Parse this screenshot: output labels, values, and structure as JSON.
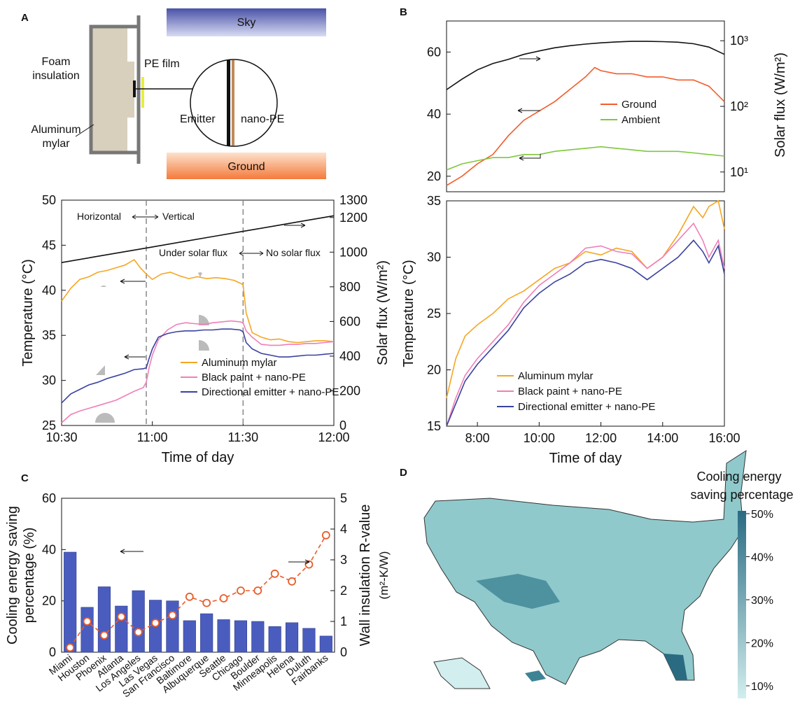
{
  "panels": {
    "A": "A",
    "B": "B",
    "C": "C",
    "D": "D"
  },
  "schematic": {
    "sky": "Sky",
    "ground": "Ground",
    "foam": "Foam insulation",
    "mylar": "Aluminum mylar",
    "pe_film": "PE film",
    "emitter": "Emitter",
    "nano_pe": "nano-PE",
    "colors": {
      "sky_top": "#4a52a8",
      "sky_bottom": "#d8dcf2",
      "ground_top": "#fde2cc",
      "ground_bottom": "#f47a3c",
      "foam": "#d8cfbd",
      "pe_film": "#e8ef3a"
    }
  },
  "chart_a2": {
    "annotations": {
      "horizontal": "Horizontal",
      "vertical": "Vertical",
      "under_solar": "Under solar flux",
      "no_solar": "No solar flux"
    }
  },
  "map": {
    "legend_title": "Cooling energy saving percentage",
    "legend_ticks": [
      "50%",
      "40%",
      "30%",
      "20%",
      "10%"
    ],
    "colors": {
      "low": "#d2eeee",
      "high": "#2a6b82"
    }
  },
  "chart_data": [
    {
      "id": "A2",
      "type": "line",
      "xlabel": "Time of day",
      "ylabel": "Temperature (°C)",
      "y2label": "Solar flux (W/m²)",
      "xlim": [
        0,
        90
      ],
      "ylim": [
        25,
        50
      ],
      "y2lim": [
        0,
        1300
      ],
      "xticks": [
        {
          "v": 0,
          "t": "10:30"
        },
        {
          "v": 30,
          "t": "11:00"
        },
        {
          "v": 60,
          "t": "11:30"
        },
        {
          "v": 90,
          "t": "12:00"
        }
      ],
      "yticks": [
        25,
        30,
        35,
        40,
        45,
        50
      ],
      "y2ticks": [
        0,
        200,
        400,
        600,
        800,
        1000,
        1200,
        1300
      ],
      "vlines": [
        28,
        60
      ],
      "series": [
        {
          "name": "Aluminum mylar",
          "color": "#f5a623",
          "axis": "left",
          "x": [
            0,
            3,
            6,
            9,
            12,
            15,
            18,
            21,
            24,
            26,
            28,
            30,
            33,
            36,
            39,
            42,
            45,
            48,
            51,
            54,
            57,
            59,
            60,
            61,
            63,
            66,
            69,
            72,
            75,
            78,
            81,
            84,
            87,
            90
          ],
          "y": [
            38.8,
            40.2,
            41.2,
            41.5,
            42.0,
            42.2,
            42.5,
            42.8,
            43.4,
            42.5,
            41.8,
            41.2,
            41.8,
            42.0,
            41.6,
            41.3,
            41.5,
            41.3,
            41.4,
            41.3,
            41.1,
            40.8,
            40.6,
            37.5,
            35.3,
            34.8,
            34.5,
            34.6,
            34.3,
            34.2,
            34.3,
            34.4,
            34.4,
            34.3
          ]
        },
        {
          "name": "Black paint + nano-PE",
          "color": "#ef7fb8",
          "axis": "left",
          "x": [
            0,
            3,
            6,
            9,
            12,
            15,
            18,
            21,
            24,
            27,
            28,
            29,
            30,
            32,
            35,
            38,
            41,
            44,
            47,
            50,
            53,
            56,
            59,
            60,
            61,
            63,
            66,
            69,
            72,
            75,
            78,
            81,
            84,
            87,
            90
          ],
          "y": [
            25.3,
            26.2,
            26.6,
            26.9,
            27.2,
            27.5,
            27.8,
            28.3,
            28.8,
            29.2,
            29.8,
            31.5,
            32.8,
            34.5,
            35.6,
            36.2,
            36.4,
            36.3,
            36.2,
            36.4,
            36.5,
            36.6,
            36.5,
            36.4,
            35.5,
            34.8,
            34.0,
            33.9,
            33.9,
            34.0,
            34.0,
            34.1,
            34.1,
            34.2,
            34.3
          ]
        },
        {
          "name": "Directional emitter + nano-PE",
          "color": "#3a42a0",
          "axis": "left",
          "x": [
            0,
            3,
            6,
            9,
            12,
            15,
            18,
            21,
            24,
            27,
            28,
            29,
            30,
            32,
            35,
            38,
            41,
            44,
            47,
            50,
            53,
            56,
            59,
            60,
            61,
            63,
            66,
            69,
            72,
            75,
            78,
            81,
            84,
            87,
            90
          ],
          "y": [
            27.5,
            28.5,
            29.0,
            29.5,
            29.8,
            30.2,
            30.5,
            30.8,
            31.2,
            31.3,
            31.4,
            32.5,
            33.5,
            34.8,
            35.2,
            35.4,
            35.5,
            35.5,
            35.6,
            35.6,
            35.7,
            35.7,
            35.6,
            35.4,
            34.2,
            33.5,
            33.0,
            32.8,
            32.6,
            32.6,
            32.7,
            32.8,
            32.8,
            32.9,
            33.0
          ]
        },
        {
          "name": "",
          "color": "#111111",
          "axis": "right",
          "legend": false,
          "x": [
            0,
            10,
            20,
            30,
            40,
            50,
            60,
            70,
            80,
            90
          ],
          "y": [
            940,
            970,
            1000,
            1030,
            1060,
            1090,
            1120,
            1150,
            1180,
            1210
          ]
        }
      ]
    },
    {
      "id": "B1",
      "type": "line",
      "y2label": "Solar flux (W/m²)",
      "xlim": [
        7,
        16
      ],
      "ylim": [
        15,
        70
      ],
      "yscale2": "log",
      "y2lim": [
        5,
        2000
      ],
      "yticks": [
        20,
        40,
        60
      ],
      "y2ticks": [
        {
          "v": 10,
          "t": "10¹"
        },
        {
          "v": 100,
          "t": "10²"
        },
        {
          "v": 1000,
          "t": "10³"
        }
      ],
      "series": [
        {
          "name": "Ground",
          "color": "#f25c2b",
          "axis": "left",
          "x": [
            7,
            7.5,
            8,
            8.5,
            9,
            9.5,
            10,
            10.5,
            11,
            11.5,
            11.8,
            12,
            12.5,
            13,
            13.5,
            14,
            14.5,
            15,
            15.5,
            16
          ],
          "y": [
            17,
            20,
            24,
            27,
            33,
            38,
            41,
            44,
            48,
            52,
            55,
            54,
            53,
            53,
            52,
            52,
            51,
            51,
            49,
            44
          ]
        },
        {
          "name": "Ambient",
          "color": "#7ec83c",
          "axis": "left",
          "x": [
            7,
            7.5,
            8,
            8.5,
            9,
            9.5,
            10,
            10.5,
            11,
            11.5,
            12,
            12.5,
            13,
            13.5,
            14,
            14.5,
            15,
            15.5,
            16
          ],
          "y": [
            22,
            24,
            25,
            26,
            26,
            27,
            27,
            28,
            28.5,
            29,
            29.5,
            29,
            28.5,
            28,
            28,
            28,
            27.5,
            27,
            26.5
          ]
        },
        {
          "name": "",
          "color": "#111111",
          "axis": "right",
          "legend": false,
          "x": [
            7,
            7.5,
            8,
            8.5,
            9,
            9.5,
            10,
            10.5,
            11,
            11.5,
            12,
            12.5,
            13,
            13.5,
            14,
            14.5,
            15,
            15.5,
            16
          ],
          "y": [
            180,
            260,
            360,
            450,
            520,
            620,
            700,
            780,
            840,
            890,
            930,
            960,
            980,
            980,
            970,
            950,
            900,
            800,
            620
          ]
        }
      ]
    },
    {
      "id": "B2",
      "type": "line",
      "xlabel": "Time of day",
      "ylabel": "Temperature (°C)",
      "xlim": [
        7,
        16
      ],
      "ylim": [
        15,
        35
      ],
      "xticks": [
        {
          "v": 8,
          "t": "8:00"
        },
        {
          "v": 10,
          "t": "10:00"
        },
        {
          "v": 12,
          "t": "12:00"
        },
        {
          "v": 14,
          "t": "14:00"
        },
        {
          "v": 16,
          "t": "16:00"
        }
      ],
      "yticks": [
        15,
        20,
        25,
        30,
        35
      ],
      "series": [
        {
          "name": "Aluminum mylar",
          "color": "#f5a623",
          "x": [
            7,
            7.3,
            7.6,
            8,
            8.5,
            9,
            9.5,
            10,
            10.5,
            11,
            11.5,
            12,
            12.5,
            13,
            13.5,
            14,
            14.5,
            15,
            15.3,
            15.5,
            15.8,
            16
          ],
          "y": [
            17.5,
            21,
            23,
            24,
            25,
            26.3,
            27,
            28,
            29,
            29.5,
            30.5,
            30.2,
            30.8,
            30.5,
            29,
            30,
            32,
            34.5,
            33.5,
            34.5,
            35,
            32.5
          ]
        },
        {
          "name": "Black paint + nano-PE",
          "color": "#ef7fb8",
          "x": [
            7,
            7.3,
            7.6,
            8,
            8.5,
            9,
            9.5,
            10,
            10.5,
            11,
            11.5,
            12,
            12.5,
            13,
            13.5,
            14,
            14.5,
            15,
            15.3,
            15.5,
            15.8,
            16
          ],
          "y": [
            15,
            17.5,
            19.5,
            21,
            22.5,
            24,
            26,
            27.5,
            28.5,
            29.5,
            30.8,
            31,
            30.5,
            30.3,
            29,
            30,
            31.5,
            33,
            31.5,
            30,
            31.5,
            29
          ]
        },
        {
          "name": "Directional emitter + nano-PE",
          "color": "#3a42a0",
          "x": [
            7,
            7.3,
            7.6,
            8,
            8.5,
            9,
            9.5,
            10,
            10.5,
            11,
            11.5,
            12,
            12.5,
            13,
            13.5,
            14,
            14.5,
            15,
            15.3,
            15.5,
            15.8,
            16
          ],
          "y": [
            15,
            17,
            19,
            20.5,
            22,
            23.5,
            25.5,
            26.8,
            27.8,
            28.5,
            29.5,
            29.8,
            29.5,
            29,
            28,
            29,
            30,
            31.5,
            30.5,
            29.5,
            31,
            28.5
          ]
        }
      ]
    },
    {
      "id": "C",
      "type": "bar",
      "ylabel": "Cooling energy saving percentage (%)",
      "y2label": "Wall insulation R-value (m²-K/W)",
      "categories": [
        "Miami",
        "Houston",
        "Phoenix",
        "Atlanta",
        "Los Angeles",
        "Las Vegas",
        "San Francisco",
        "Baltimore",
        "Albuquerque",
        "Seattle",
        "Chicago",
        "Boulder",
        "Minneapolis",
        "Helena",
        "Duluth",
        "Fairbanks"
      ],
      "ylim": [
        0,
        60
      ],
      "y2lim": [
        0,
        5
      ],
      "yticks": [
        0,
        20,
        40,
        60
      ],
      "y2ticks": [
        0,
        1,
        2,
        3,
        4,
        5
      ],
      "series": [
        {
          "name": "",
          "color": "#4a5dbf",
          "axis": "left",
          "values": [
            39,
            17.5,
            25.5,
            18,
            24,
            20.3,
            20,
            12.3,
            15,
            12.7,
            12.3,
            12,
            10,
            11.5,
            9.3,
            6.3
          ]
        },
        {
          "name": "",
          "color": "#e85d2a",
          "axis": "right",
          "values": [
            0.15,
            1.0,
            0.55,
            1.15,
            0.65,
            0.95,
            1.2,
            1.8,
            1.6,
            1.75,
            2.0,
            2.0,
            2.55,
            2.3,
            2.85,
            3.8
          ]
        }
      ]
    }
  ]
}
